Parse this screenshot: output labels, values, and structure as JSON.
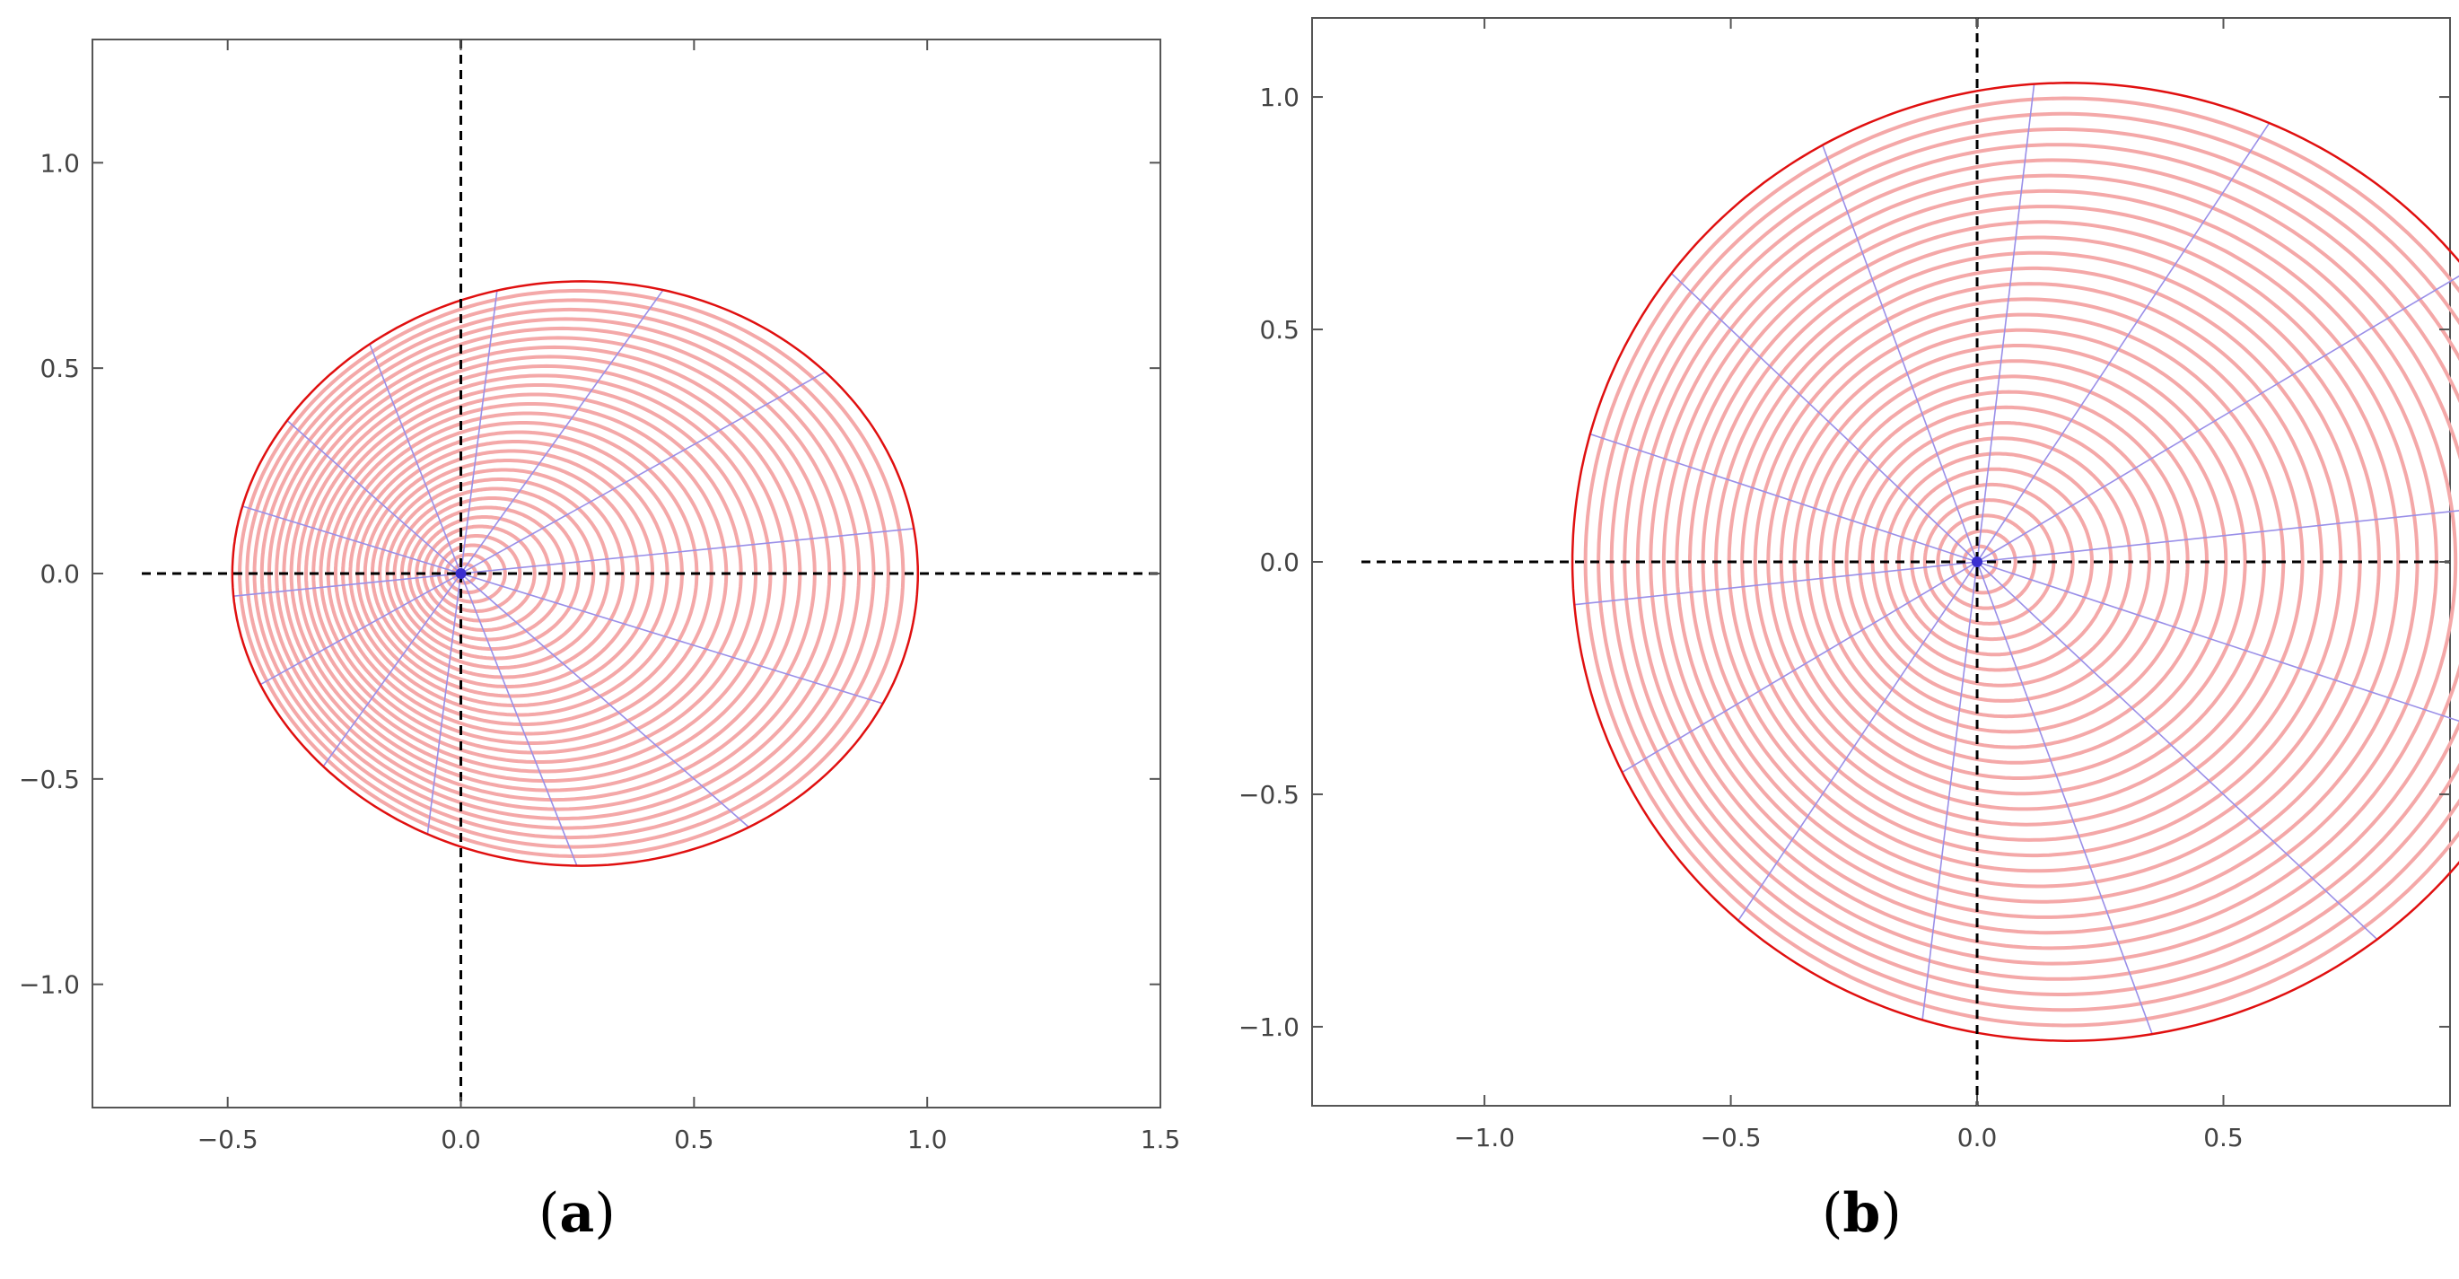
{
  "panels": [
    {
      "id": "a",
      "label_letter": "a",
      "curve": {
        "family": "cardioid-like",
        "r0": 0.7,
        "a": 0.35,
        "b": 0.05,
        "levels": 31,
        "radials": 14
      },
      "x_range": [
        -0.79,
        1.5
      ],
      "y_range": [
        -1.3,
        1.3
      ],
      "x_ticks": [
        {
          "value": -0.5,
          "label": "−0.5"
        },
        {
          "value": 0.0,
          "label": "0.0"
        },
        {
          "value": 0.5,
          "label": "0.5"
        },
        {
          "value": 1.0,
          "label": "1.0"
        },
        {
          "value": 1.5,
          "label": "1.5"
        }
      ],
      "y_ticks": [
        {
          "value": 1.0,
          "label": "1.0"
        },
        {
          "value": 0.5,
          "label": "0.5"
        },
        {
          "value": 0.0,
          "label": "0.0"
        },
        {
          "value": -0.5,
          "label": "−0.5"
        },
        {
          "value": -1.0,
          "label": "−1.0"
        }
      ]
    },
    {
      "id": "b",
      "label_letter": "b",
      "curve": {
        "family": "offset-circle",
        "r0": 1.013,
        "a": 0.189,
        "b": 0.0,
        "levels": 31,
        "radials": 14
      },
      "x_range": [
        -1.35,
        0.96
      ],
      "y_range": [
        -1.17,
        1.17
      ],
      "x_ticks": [
        {
          "value": -1.0,
          "label": "−1.0"
        },
        {
          "value": -0.5,
          "label": "−0.5"
        },
        {
          "value": 0.0,
          "label": "0.0"
        },
        {
          "value": 0.5,
          "label": "0.5"
        }
      ],
      "y_ticks": [
        {
          "value": 1.0,
          "label": "1.0"
        },
        {
          "value": 0.5,
          "label": "0.5"
        },
        {
          "value": 0.0,
          "label": "0.0"
        },
        {
          "value": -0.5,
          "label": "−0.5"
        },
        {
          "value": -1.0,
          "label": "−1.0"
        }
      ]
    }
  ],
  "colors": {
    "level_curves": "#f4a8a8",
    "boundary": "#e01010",
    "radial_lines": "#9a8fe8",
    "axes": "#000000"
  }
}
